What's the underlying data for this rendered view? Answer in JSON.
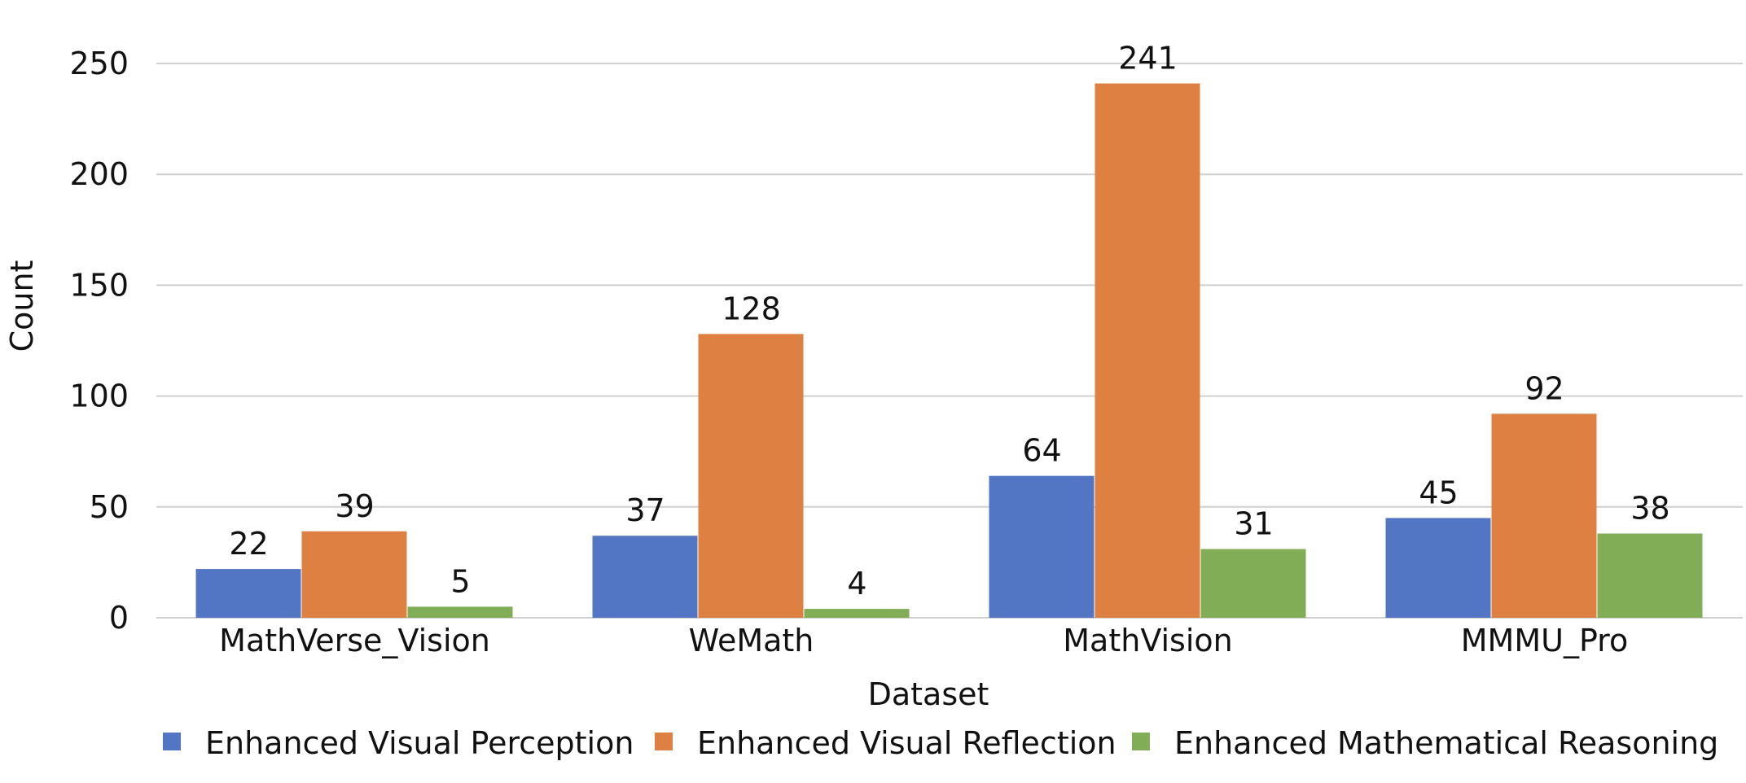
{
  "chart_data": {
    "type": "bar",
    "title": "",
    "xlabel": "Dataset",
    "ylabel": "Count",
    "ylim": [
      0,
      250
    ],
    "yticks": [
      0,
      50,
      100,
      150,
      200,
      250
    ],
    "grid": true,
    "legend_position": "bottom",
    "categories": [
      "MathVerse_Vision",
      "WeMath",
      "MathVision",
      "MMMU_Pro"
    ],
    "series": [
      {
        "name": "Enhanced Visual Perception",
        "color": "#5276C4",
        "values": [
          22,
          37,
          64,
          45
        ]
      },
      {
        "name": "Enhanced Visual Reflection",
        "color": "#DD8041",
        "values": [
          39,
          128,
          241,
          92
        ]
      },
      {
        "name": "Enhanced Mathematical Reasoning",
        "color": "#80AD55",
        "values": [
          5,
          4,
          31,
          38
        ]
      }
    ]
  }
}
